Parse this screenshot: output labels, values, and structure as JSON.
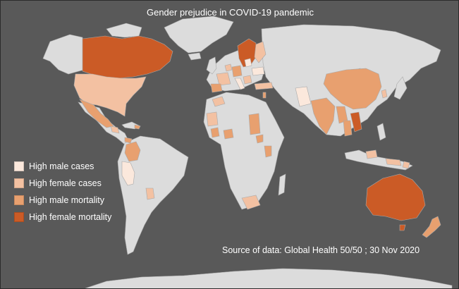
{
  "title": "Gender prejudice in COVID-19 pandemic",
  "source": "Source of data: Global Health 50/50 ; 30 Nov 2020",
  "colors": {
    "background": "#595959",
    "no_data": "#dcdcdc",
    "border": "#a9a9a9"
  },
  "legend": [
    {
      "label": "High male cases",
      "color": "#fbe8dc"
    },
    {
      "label": "High female cases",
      "color": "#f3c1a2"
    },
    {
      "label": "High male mortality",
      "color": "#e8a06f"
    },
    {
      "label": "High female mortality",
      "color": "#cb5b26"
    }
  ]
}
